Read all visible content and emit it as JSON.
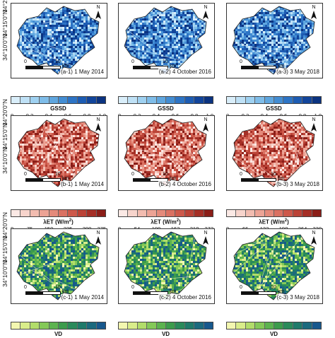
{
  "lat_labels": [
    "34°10'0\"N",
    "34°15'0\"N",
    "34°20'0\"N"
  ],
  "rows": [
    {
      "id": "a",
      "panels": [
        "(a-1) 1 May 2014",
        "(a-2) 4 October 2016",
        "(a-3) 3 May 2018"
      ],
      "palette": [
        "#d9eefa",
        "#bfe1f6",
        "#9fd1f1",
        "#7fbde9",
        "#5fa6df",
        "#438dd3",
        "#2d74c5",
        "#1d5cb3",
        "#12459b",
        "#0b3380"
      ],
      "legends": [
        {
          "title": "GSSD",
          "unit_sup": "",
          "ticks": [
            "0",
            "0.2",
            "0.4",
            "0.6",
            "0.8",
            "1.0"
          ]
        },
        {
          "title": "GSSD",
          "unit_sup": "",
          "ticks": [
            "0",
            "0.2",
            "0.4",
            "0.6",
            "0.8",
            "1.0"
          ]
        },
        {
          "title": "GSSD",
          "unit_sup": "",
          "ticks": [
            "0",
            "0.2",
            "0.4",
            "0.6",
            "0.8",
            "1.0"
          ]
        }
      ]
    },
    {
      "id": "b",
      "panels": [
        "(b-1) 1 May 2014",
        "(b-2) 4 October 2016",
        "(b-3) 3 May 2018"
      ],
      "palette": [
        "#fbe9e5",
        "#f7d4cc",
        "#f2bcb0",
        "#eca395",
        "#e48a7b",
        "#da7162",
        "#cd594b",
        "#bb4337",
        "#a52f26",
        "#8b1e18"
      ],
      "legends": [
        {
          "title": "λET (W/m",
          "unit_sup": "2",
          "title_end": ")",
          "ticks": [
            "0",
            "75",
            "150",
            "225",
            "300",
            "375"
          ]
        },
        {
          "title": "λET (W/m",
          "unit_sup": "2",
          "title_end": ")",
          "ticks": [
            "0",
            "54",
            "109",
            "163",
            "218",
            "272"
          ]
        },
        {
          "title": "λET (W/m",
          "unit_sup": "2",
          "title_end": ")",
          "ticks": [
            "0",
            "66",
            "132",
            "198",
            "264",
            "330"
          ]
        }
      ]
    },
    {
      "id": "c",
      "panels": [
        "(c-1) 1 May 2014",
        "(c-2) 4 October 2016",
        "(c-3) 3 May 2018"
      ],
      "palette": [
        "#f3f7b0",
        "#d9ed8a",
        "#b2dd6a",
        "#84c958",
        "#5cb34f",
        "#3c9c4c",
        "#2a8a5a",
        "#1f7a6a",
        "#1b6a7e",
        "#17588d"
      ],
      "legends": [
        {
          "title": "VD",
          "unit_sup": "",
          "ticks": []
        },
        {
          "title": "VD",
          "unit_sup": "",
          "ticks": []
        },
        {
          "title": "VD",
          "unit_sup": "",
          "ticks": []
        }
      ]
    }
  ],
  "scale": {
    "zero": "0",
    "ten": "10",
    "unit": "km"
  },
  "north_label": "N"
}
